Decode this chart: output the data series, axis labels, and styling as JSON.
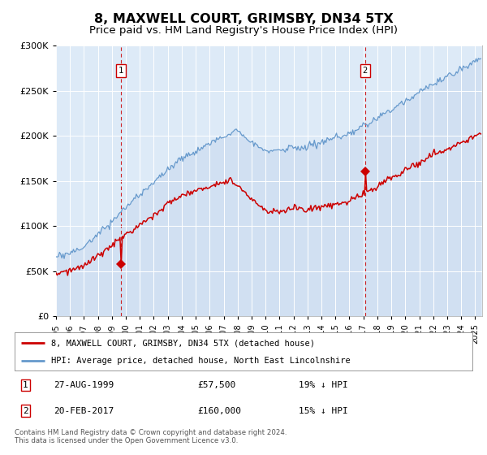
{
  "title": "8, MAXWELL COURT, GRIMSBY, DN34 5TX",
  "subtitle": "Price paid vs. HM Land Registry's House Price Index (HPI)",
  "title_fontsize": 11.5,
  "subtitle_fontsize": 9.5,
  "background_color": "#ffffff",
  "plot_bg_color": "#ddeaf7",
  "ylim": [
    0,
    300000
  ],
  "yticks": [
    0,
    50000,
    100000,
    150000,
    200000,
    250000,
    300000
  ],
  "xlim_start": 1995.0,
  "xlim_end": 2025.5,
  "grid_color": "#ffffff",
  "legend_label_red": "8, MAXWELL COURT, GRIMSBY, DN34 5TX (detached house)",
  "legend_label_blue": "HPI: Average price, detached house, North East Lincolnshire",
  "sale1_x": 1999.65,
  "sale1_y": 57500,
  "sale1_label": "1",
  "sale1_date": "27-AUG-1999",
  "sale1_price": "£57,500",
  "sale1_hpi": "19% ↓ HPI",
  "sale2_x": 2017.12,
  "sale2_y": 160000,
  "sale2_label": "2",
  "sale2_date": "20-FEB-2017",
  "sale2_price": "£160,000",
  "sale2_hpi": "15% ↓ HPI",
  "footer": "Contains HM Land Registry data © Crown copyright and database right 2024.\nThis data is licensed under the Open Government Licence v3.0.",
  "red_color": "#cc0000",
  "blue_color": "#6699cc",
  "blue_fill": "#c8d8ee"
}
